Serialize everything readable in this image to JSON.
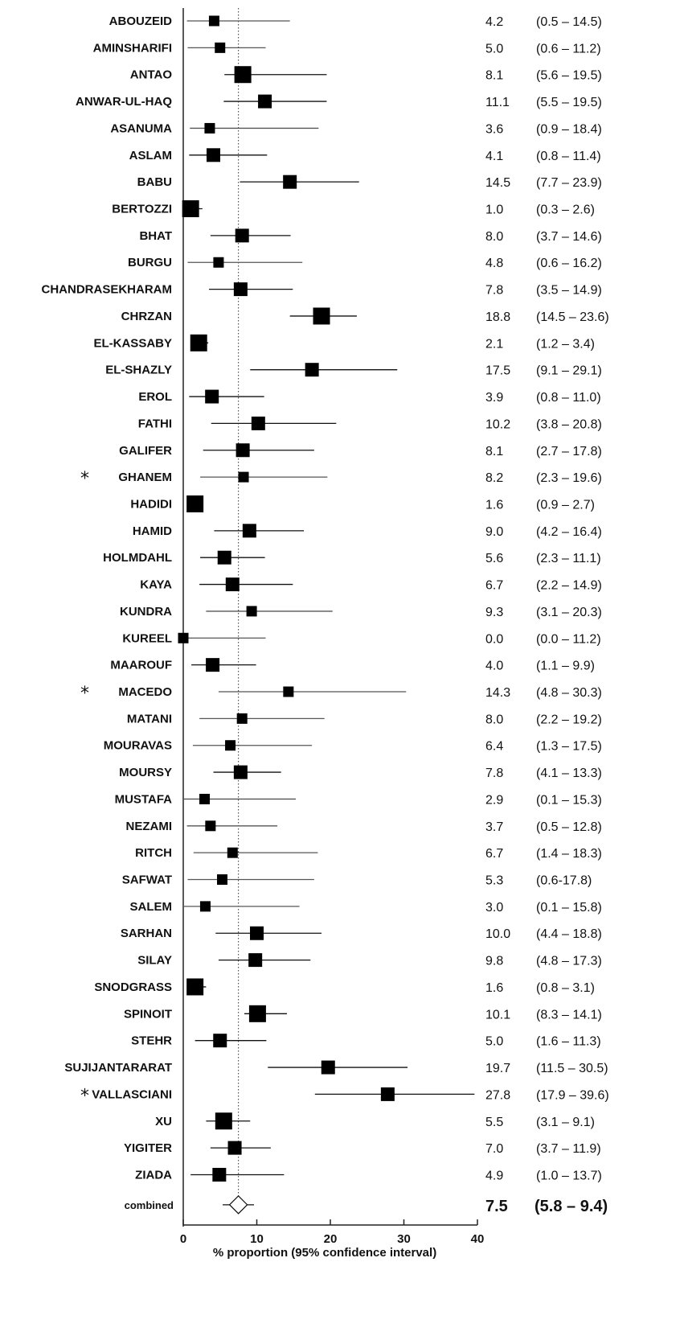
{
  "chart_data": {
    "type": "forest",
    "xlabel": "% proportion (95% confidence interval)",
    "xlim": [
      0,
      40
    ],
    "xticks": [
      "0",
      "10",
      "20",
      "30",
      "40"
    ],
    "reference_line": 7.5,
    "studies": [
      {
        "name": "ABOUZEID",
        "est": 4.2,
        "lo": 0.5,
        "hi": 14.5,
        "est_label": "4.2",
        "ci_label": "(0.5 – 14.5)",
        "weight": 2,
        "star": false
      },
      {
        "name": "AMINSHARIFI",
        "est": 5.0,
        "lo": 0.6,
        "hi": 11.2,
        "est_label": "5.0",
        "ci_label": "(0.6 – 11.2)",
        "weight": 2,
        "star": false
      },
      {
        "name": "ANTAO",
        "est": 8.1,
        "lo": 5.6,
        "hi": 19.5,
        "est_label": "8.1",
        "ci_label": "(5.6 – 19.5)",
        "weight": 4,
        "star": false
      },
      {
        "name": "ANWAR-UL-HAQ",
        "est": 11.1,
        "lo": 5.5,
        "hi": 19.5,
        "est_label": "11.1",
        "ci_label": "(5.5 – 19.5)",
        "weight": 3,
        "star": false
      },
      {
        "name": "ASANUMA",
        "est": 3.6,
        "lo": 0.9,
        "hi": 18.4,
        "est_label": "3.6",
        "ci_label": "(0.9 – 18.4)",
        "weight": 2,
        "star": false
      },
      {
        "name": "ASLAM",
        "est": 4.1,
        "lo": 0.8,
        "hi": 11.4,
        "est_label": "4.1",
        "ci_label": "(0.8 – 11.4)",
        "weight": 3,
        "star": false
      },
      {
        "name": "BABU",
        "est": 14.5,
        "lo": 7.7,
        "hi": 23.9,
        "est_label": "14.5",
        "ci_label": "(7.7 – 23.9)",
        "weight": 3,
        "star": false
      },
      {
        "name": "BERTOZZI",
        "est": 1.0,
        "lo": 0.3,
        "hi": 2.6,
        "est_label": "1.0",
        "ci_label": "(0.3 – 2.6)",
        "weight": 4,
        "star": false
      },
      {
        "name": "BHAT",
        "est": 8.0,
        "lo": 3.7,
        "hi": 14.6,
        "est_label": "8.0",
        "ci_label": "(3.7 – 14.6)",
        "weight": 3,
        "star": false
      },
      {
        "name": "BURGU",
        "est": 4.8,
        "lo": 0.6,
        "hi": 16.2,
        "est_label": "4.8",
        "ci_label": "(0.6 – 16.2)",
        "weight": 2,
        "star": false
      },
      {
        "name": "CHANDRASEKHARAM",
        "est": 7.8,
        "lo": 3.5,
        "hi": 14.9,
        "est_label": "7.8",
        "ci_label": "(3.5 – 14.9)",
        "weight": 3,
        "star": false
      },
      {
        "name": "CHRZAN",
        "est": 18.8,
        "lo": 14.5,
        "hi": 23.6,
        "est_label": "18.8",
        "ci_label": "(14.5 – 23.6)",
        "weight": 4,
        "star": false
      },
      {
        "name": "EL-KASSABY",
        "est": 2.1,
        "lo": 1.2,
        "hi": 3.4,
        "est_label": "2.1",
        "ci_label": "(1.2 – 3.4)",
        "weight": 4,
        "star": false
      },
      {
        "name": "EL-SHAZLY",
        "est": 17.5,
        "lo": 9.1,
        "hi": 29.1,
        "est_label": "17.5",
        "ci_label": "(9.1 – 29.1)",
        "weight": 3,
        "star": false
      },
      {
        "name": "EROL",
        "est": 3.9,
        "lo": 0.8,
        "hi": 11.0,
        "est_label": "3.9",
        "ci_label": "(0.8 – 11.0)",
        "weight": 3,
        "star": false
      },
      {
        "name": "FATHI",
        "est": 10.2,
        "lo": 3.8,
        "hi": 20.8,
        "est_label": "10.2",
        "ci_label": "(3.8 – 20.8)",
        "weight": 3,
        "star": false
      },
      {
        "name": "GALIFER",
        "est": 8.1,
        "lo": 2.7,
        "hi": 17.8,
        "est_label": "8.1",
        "ci_label": "(2.7 – 17.8)",
        "weight": 3,
        "star": false
      },
      {
        "name": "GHANEM",
        "est": 8.2,
        "lo": 2.3,
        "hi": 19.6,
        "est_label": "8.2",
        "ci_label": "(2.3 – 19.6)",
        "weight": 2,
        "star": true
      },
      {
        "name": "HADIDI",
        "est": 1.6,
        "lo": 0.9,
        "hi": 2.7,
        "est_label": "1.6",
        "ci_label": "(0.9 – 2.7)",
        "weight": 4,
        "star": false
      },
      {
        "name": "HAMID",
        "est": 9.0,
        "lo": 4.2,
        "hi": 16.4,
        "est_label": "9.0",
        "ci_label": "(4.2 – 16.4)",
        "weight": 3,
        "star": false
      },
      {
        "name": "HOLMDAHL",
        "est": 5.6,
        "lo": 2.3,
        "hi": 11.1,
        "est_label": "5.6",
        "ci_label": "(2.3 – 11.1)",
        "weight": 3,
        "star": false
      },
      {
        "name": "KAYA",
        "est": 6.7,
        "lo": 2.2,
        "hi": 14.9,
        "est_label": "6.7",
        "ci_label": "(2.2 – 14.9)",
        "weight": 3,
        "star": false
      },
      {
        "name": "KUNDRA",
        "est": 9.3,
        "lo": 3.1,
        "hi": 20.3,
        "est_label": "9.3",
        "ci_label": "(3.1 – 20.3)",
        "weight": 2,
        "star": false
      },
      {
        "name": "KUREEL",
        "est": 0.0,
        "lo": 0.0,
        "hi": 11.2,
        "est_label": "0.0",
        "ci_label": "(0.0 – 11.2)",
        "weight": 2,
        "star": false
      },
      {
        "name": "MAAROUF",
        "est": 4.0,
        "lo": 1.1,
        "hi": 9.9,
        "est_label": "4.0",
        "ci_label": "(1.1 – 9.9)",
        "weight": 3,
        "star": false
      },
      {
        "name": "MACEDO",
        "est": 14.3,
        "lo": 4.8,
        "hi": 30.3,
        "est_label": "14.3",
        "ci_label": "(4.8 – 30.3)",
        "weight": 2,
        "star": true
      },
      {
        "name": "MATANI",
        "est": 8.0,
        "lo": 2.2,
        "hi": 19.2,
        "est_label": "8.0",
        "ci_label": "(2.2 – 19.2)",
        "weight": 2,
        "star": false
      },
      {
        "name": "MOURAVAS",
        "est": 6.4,
        "lo": 1.3,
        "hi": 17.5,
        "est_label": "6.4",
        "ci_label": "(1.3 – 17.5)",
        "weight": 2,
        "star": false
      },
      {
        "name": "MOURSY",
        "est": 7.8,
        "lo": 4.1,
        "hi": 13.3,
        "est_label": "7.8",
        "ci_label": "(4.1 – 13.3)",
        "weight": 3,
        "star": false
      },
      {
        "name": "MUSTAFA",
        "est": 2.9,
        "lo": 0.1,
        "hi": 15.3,
        "est_label": "2.9",
        "ci_label": "(0.1 – 15.3)",
        "weight": 2,
        "star": false
      },
      {
        "name": "NEZAMI",
        "est": 3.7,
        "lo": 0.5,
        "hi": 12.8,
        "est_label": "3.7",
        "ci_label": "(0.5 – 12.8)",
        "weight": 2,
        "star": false
      },
      {
        "name": "RITCH",
        "est": 6.7,
        "lo": 1.4,
        "hi": 18.3,
        "est_label": "6.7",
        "ci_label": "(1.4 – 18.3)",
        "weight": 2,
        "star": false
      },
      {
        "name": "SAFWAT",
        "est": 5.3,
        "lo": 0.6,
        "hi": 17.8,
        "est_label": "5.3",
        "ci_label": "(0.6-17.8)",
        "weight": 2,
        "star": false
      },
      {
        "name": "SALEM",
        "est": 3.0,
        "lo": 0.1,
        "hi": 15.8,
        "est_label": "3.0",
        "ci_label": "(0.1 – 15.8)",
        "weight": 2,
        "star": false
      },
      {
        "name": "SARHAN",
        "est": 10.0,
        "lo": 4.4,
        "hi": 18.8,
        "est_label": "10.0",
        "ci_label": "(4.4 – 18.8)",
        "weight": 3,
        "star": false
      },
      {
        "name": "SILAY",
        "est": 9.8,
        "lo": 4.8,
        "hi": 17.3,
        "est_label": "9.8",
        "ci_label": "(4.8 – 17.3)",
        "weight": 3,
        "star": false
      },
      {
        "name": "SNODGRASS",
        "est": 1.6,
        "lo": 0.8,
        "hi": 3.1,
        "est_label": "1.6",
        "ci_label": "(0.8 – 3.1)",
        "weight": 4,
        "star": false
      },
      {
        "name": "SPINOIT",
        "est": 10.1,
        "lo": 8.3,
        "hi": 14.1,
        "est_label": "10.1",
        "ci_label": "(8.3 – 14.1)",
        "weight": 4,
        "star": false
      },
      {
        "name": "STEHR",
        "est": 5.0,
        "lo": 1.6,
        "hi": 11.3,
        "est_label": "5.0",
        "ci_label": "(1.6 – 11.3)",
        "weight": 3,
        "star": false
      },
      {
        "name": "SUJIJANTARARAT",
        "est": 19.7,
        "lo": 11.5,
        "hi": 30.5,
        "est_label": "19.7",
        "ci_label": "(11.5 – 30.5)",
        "weight": 3,
        "star": false
      },
      {
        "name": "VALLASCIANI",
        "est": 27.8,
        "lo": 17.9,
        "hi": 39.6,
        "est_label": "27.8",
        "ci_label": "(17.9 – 39.6)",
        "weight": 3,
        "star": true
      },
      {
        "name": "XU",
        "est": 5.5,
        "lo": 3.1,
        "hi": 9.1,
        "est_label": "5.5",
        "ci_label": "(3.1 – 9.1)",
        "weight": 4,
        "star": false
      },
      {
        "name": "YIGITER",
        "est": 7.0,
        "lo": 3.7,
        "hi": 11.9,
        "est_label": "7.0",
        "ci_label": "(3.7 – 11.9)",
        "weight": 3,
        "star": false
      },
      {
        "name": "ZIADA",
        "est": 4.9,
        "lo": 1.0,
        "hi": 13.7,
        "est_label": "4.9",
        "ci_label": "(1.0 – 13.7)",
        "weight": 3,
        "star": false
      }
    ],
    "combined": {
      "name": "combined",
      "est": 7.5,
      "lo": 5.8,
      "hi": 9.4,
      "est_label": "7.5",
      "ci_label": "(5.8 – 9.4)"
    },
    "star_marker": "*"
  }
}
